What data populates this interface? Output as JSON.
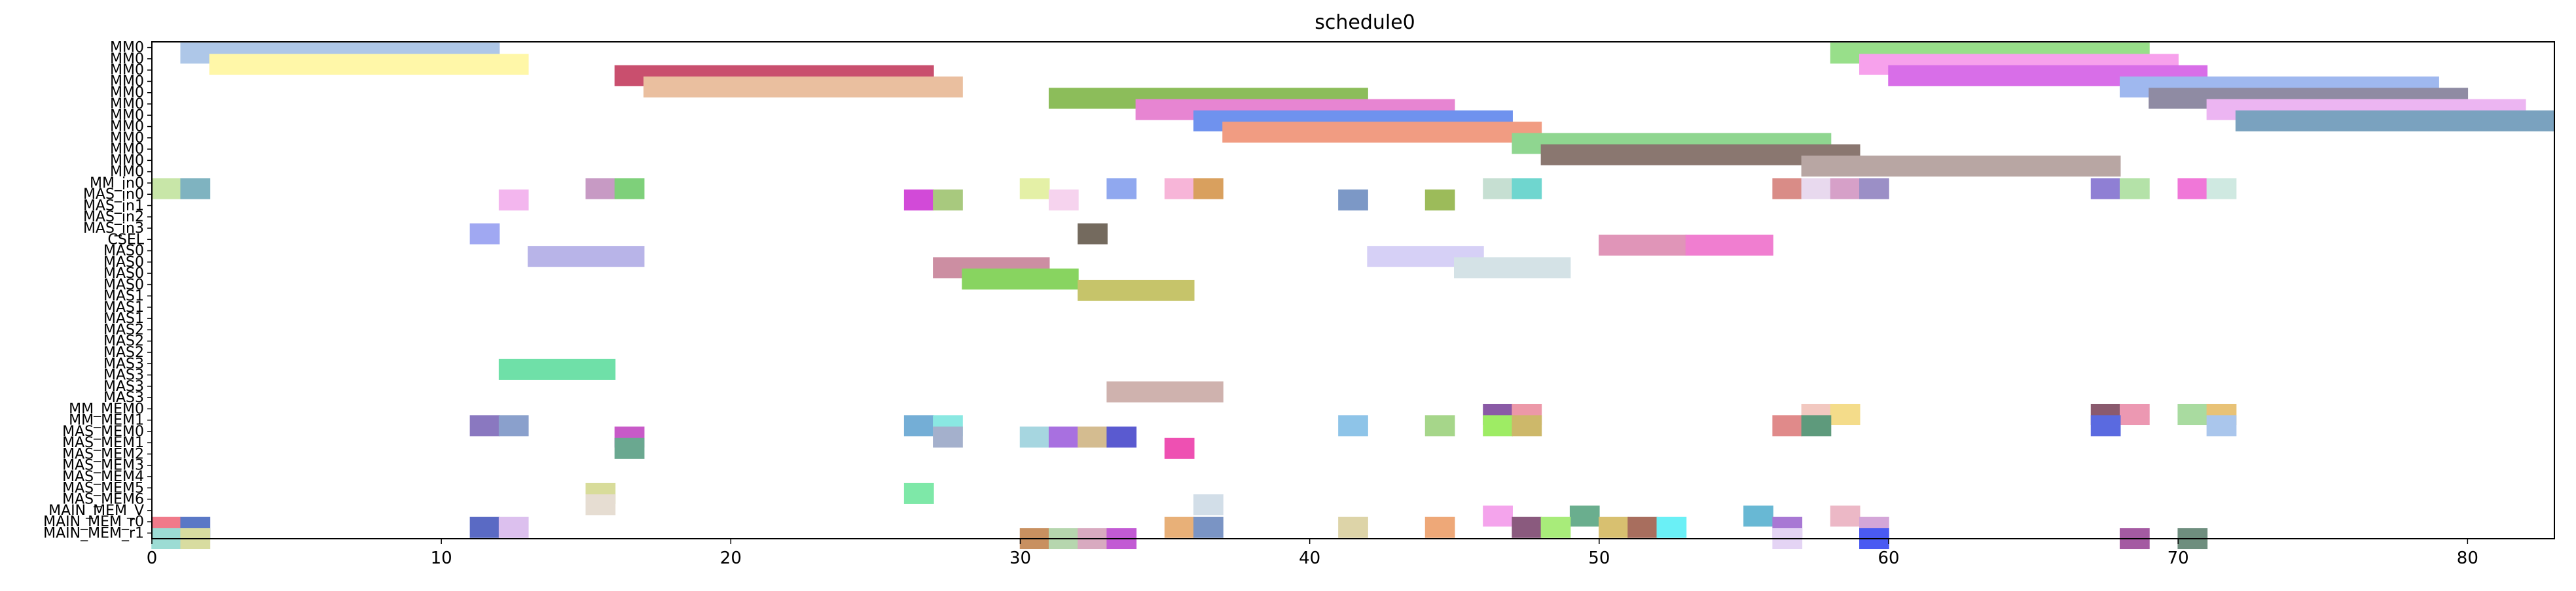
{
  "chart_data": {
    "type": "gantt",
    "title": "schedule0",
    "xlim": [
      0,
      83
    ],
    "x_ticks": [
      0,
      10,
      20,
      30,
      40,
      50,
      60,
      70,
      80
    ],
    "y_labels": [
      "MM0",
      "MM0",
      "MM0",
      "MM0",
      "MM0",
      "MM0",
      "MM0",
      "MM0",
      "MM0",
      "MM0",
      "MM0",
      "MM0",
      "MM_in0",
      "MAS_in0",
      "MAS_in1",
      "MAS_in2",
      "MAS_in3",
      "CSEL",
      "MAS0",
      "MAS0",
      "MAS0",
      "MAS0",
      "MAS1",
      "MAS1",
      "MAS1",
      "MAS2",
      "MAS2",
      "MAS2",
      "MAS3",
      "MAS3",
      "MAS3",
      "MAS3",
      "MM_MEM0",
      "MM_MEM1",
      "MAS_MEM0",
      "MAS_MEM1",
      "MAS_MEM2",
      "MAS_MEM3",
      "MAS_MEM4",
      "MAS_MEM5",
      "MAS_MEM6",
      "MAIN_MEM_V",
      "MAIN_MEM_r0",
      "MAIN_MEM_r1"
    ],
    "bars": [
      {
        "row": 0,
        "start": 1,
        "end": 12,
        "color": "#aec7e8"
      },
      {
        "row": 0,
        "start": 58,
        "end": 69,
        "color": "#98df8a"
      },
      {
        "row": 1,
        "start": 2,
        "end": 13,
        "color": "#fff7a8"
      },
      {
        "row": 1,
        "start": 59,
        "end": 70,
        "color": "#f7a1ec"
      },
      {
        "row": 2,
        "start": 16,
        "end": 27,
        "color": "#c94f6e"
      },
      {
        "row": 2,
        "start": 60,
        "end": 71,
        "color": "#d86ee8"
      },
      {
        "row": 3,
        "start": 17,
        "end": 28,
        "color": "#eabf9f"
      },
      {
        "row": 3,
        "start": 68,
        "end": 79,
        "color": "#9fb8ef"
      },
      {
        "row": 4,
        "start": 31,
        "end": 42,
        "color": "#8cbd5a"
      },
      {
        "row": 4,
        "start": 69,
        "end": 80,
        "color": "#8f8ba3"
      },
      {
        "row": 5,
        "start": 34,
        "end": 45,
        "color": "#e785d2"
      },
      {
        "row": 5,
        "start": 71,
        "end": 82,
        "color": "#ecb5f2"
      },
      {
        "row": 6,
        "start": 36,
        "end": 47,
        "color": "#6f92ee"
      },
      {
        "row": 6,
        "start": 72,
        "end": 83,
        "color": "#7aa2bf"
      },
      {
        "row": 7,
        "start": 37,
        "end": 48,
        "color": "#f19c82"
      },
      {
        "row": 8,
        "start": 47,
        "end": 58,
        "color": "#8fd690"
      },
      {
        "row": 9,
        "start": 48,
        "end": 59,
        "color": "#8a7770"
      },
      {
        "row": 10,
        "start": 57,
        "end": 68,
        "color": "#b8a6a3"
      },
      {
        "row": 12,
        "start": 0,
        "end": 1,
        "color": "#c8e6a8"
      },
      {
        "row": 12,
        "start": 1,
        "end": 2,
        "color": "#7fb3c0"
      },
      {
        "row": 12,
        "start": 15,
        "end": 16,
        "color": "#c79ac4"
      },
      {
        "row": 12,
        "start": 16,
        "end": 17,
        "color": "#7ed07a"
      },
      {
        "row": 12,
        "start": 30,
        "end": 31,
        "color": "#e4f0a6"
      },
      {
        "row": 12,
        "start": 33,
        "end": 34,
        "color": "#90a8ef"
      },
      {
        "row": 12,
        "start": 35,
        "end": 36,
        "color": "#f7b5d8"
      },
      {
        "row": 12,
        "start": 36,
        "end": 37,
        "color": "#d9a05e"
      },
      {
        "row": 12,
        "start": 46,
        "end": 47,
        "color": "#c6dfd2"
      },
      {
        "row": 12,
        "start": 47,
        "end": 48,
        "color": "#6fd6cf"
      },
      {
        "row": 12,
        "start": 56,
        "end": 57,
        "color": "#d98c87"
      },
      {
        "row": 12,
        "start": 57,
        "end": 58,
        "color": "#e8d9ee"
      },
      {
        "row": 12,
        "start": 58,
        "end": 59,
        "color": "#d6a0c8"
      },
      {
        "row": 12,
        "start": 59,
        "end": 60,
        "color": "#9b8fc6"
      },
      {
        "row": 12,
        "start": 67,
        "end": 68,
        "color": "#8f7fd4"
      },
      {
        "row": 12,
        "start": 68,
        "end": 69,
        "color": "#b4e2a8"
      },
      {
        "row": 12,
        "start": 70,
        "end": 71,
        "color": "#f077d8"
      },
      {
        "row": 12,
        "start": 71,
        "end": 72,
        "color": "#cfe9e1"
      },
      {
        "row": 13,
        "start": 12,
        "end": 13,
        "color": "#f3b6ee"
      },
      {
        "row": 13,
        "start": 26,
        "end": 27,
        "color": "#d24ad8"
      },
      {
        "row": 13,
        "start": 27,
        "end": 28,
        "color": "#a8c97e"
      },
      {
        "row": 13,
        "start": 31,
        "end": 32,
        "color": "#f6d3ee"
      },
      {
        "row": 13,
        "start": 41,
        "end": 42,
        "color": "#7c98c6"
      },
      {
        "row": 13,
        "start": 44,
        "end": 45,
        "color": "#9cbb5a"
      },
      {
        "row": 16,
        "start": 11,
        "end": 12,
        "color": "#a0a8f2"
      },
      {
        "row": 16,
        "start": 32,
        "end": 33,
        "color": "#746a5e"
      },
      {
        "row": 17,
        "start": 50,
        "end": 53,
        "color": "#e095b8"
      },
      {
        "row": 17,
        "start": 53,
        "end": 56,
        "color": "#f07ed0"
      },
      {
        "row": 18,
        "start": 13,
        "end": 17,
        "color": "#b8b4e8"
      },
      {
        "row": 18,
        "start": 42,
        "end": 46,
        "color": "#d6d0f6"
      },
      {
        "row": 19,
        "start": 27,
        "end": 31,
        "color": "#cc8ea2"
      },
      {
        "row": 19,
        "start": 45,
        "end": 49,
        "color": "#d4e2e6"
      },
      {
        "row": 20,
        "start": 28,
        "end": 32,
        "color": "#88d460"
      },
      {
        "row": 21,
        "start": 32,
        "end": 36,
        "color": "#c6c46a"
      },
      {
        "row": 28,
        "start": 12,
        "end": 16,
        "color": "#6fe0a8"
      },
      {
        "row": 30,
        "start": 33,
        "end": 37,
        "color": "#cfb2ae"
      },
      {
        "row": 32,
        "start": 46,
        "end": 47,
        "color": "#8a5aa6"
      },
      {
        "row": 32,
        "start": 47,
        "end": 48,
        "color": "#ec98a8"
      },
      {
        "row": 32,
        "start": 57,
        "end": 58,
        "color": "#f2c8c0"
      },
      {
        "row": 32,
        "start": 58,
        "end": 59,
        "color": "#f4dc8a"
      },
      {
        "row": 32,
        "start": 67,
        "end": 68,
        "color": "#8a5a6e"
      },
      {
        "row": 32,
        "start": 68,
        "end": 69,
        "color": "#ec98b2"
      },
      {
        "row": 32,
        "start": 70,
        "end": 71,
        "color": "#a9dba0"
      },
      {
        "row": 32,
        "start": 71,
        "end": 72,
        "color": "#e8c276"
      },
      {
        "row": 33,
        "start": 11,
        "end": 12,
        "color": "#8a78c0"
      },
      {
        "row": 33,
        "start": 12,
        "end": 13,
        "color": "#8aa0cc"
      },
      {
        "row": 33,
        "start": 26,
        "end": 27,
        "color": "#74aed6"
      },
      {
        "row": 33,
        "start": 27,
        "end": 28,
        "color": "#8ae8e2"
      },
      {
        "row": 33,
        "start": 41,
        "end": 42,
        "color": "#8ec4e8"
      },
      {
        "row": 33,
        "start": 44,
        "end": 45,
        "color": "#a6d68a"
      },
      {
        "row": 33,
        "start": 46,
        "end": 47,
        "color": "#9eec64"
      },
      {
        "row": 33,
        "start": 47,
        "end": 48,
        "color": "#cdb86a"
      },
      {
        "row": 33,
        "start": 56,
        "end": 57,
        "color": "#e08a8a"
      },
      {
        "row": 33,
        "start": 57,
        "end": 58,
        "color": "#5e9a7c"
      },
      {
        "row": 33,
        "start": 67,
        "end": 68,
        "color": "#5a6ae0"
      },
      {
        "row": 33,
        "start": 71,
        "end": 72,
        "color": "#aac6ec"
      },
      {
        "row": 34,
        "start": 16,
        "end": 17,
        "color": "#c85ac8"
      },
      {
        "row": 34,
        "start": 27,
        "end": 28,
        "color": "#a4b0cc"
      },
      {
        "row": 34,
        "start": 30,
        "end": 31,
        "color": "#a6d6e0"
      },
      {
        "row": 34,
        "start": 31,
        "end": 32,
        "color": "#a870e0"
      },
      {
        "row": 34,
        "start": 32,
        "end": 33,
        "color": "#d4bc90"
      },
      {
        "row": 34,
        "start": 33,
        "end": 34,
        "color": "#5a5ad0"
      },
      {
        "row": 35,
        "start": 16,
        "end": 17,
        "color": "#6aa890"
      },
      {
        "row": 35,
        "start": 35,
        "end": 36,
        "color": "#ee50b2"
      },
      {
        "row": 39,
        "start": 15,
        "end": 16,
        "color": "#d8dc9a"
      },
      {
        "row": 39,
        "start": 26,
        "end": 27,
        "color": "#7ee8a8"
      },
      {
        "row": 40,
        "start": 15,
        "end": 16,
        "color": "#e6ddd2"
      },
      {
        "row": 40,
        "start": 36,
        "end": 37,
        "color": "#d2dee8"
      },
      {
        "row": 41,
        "start": 46,
        "end": 47,
        "color": "#f4a4ec"
      },
      {
        "row": 41,
        "start": 49,
        "end": 50,
        "color": "#6aae8e"
      },
      {
        "row": 41,
        "start": 55,
        "end": 56,
        "color": "#68b8d4"
      },
      {
        "row": 41,
        "start": 58,
        "end": 59,
        "color": "#ecb8c6"
      },
      {
        "row": 42,
        "start": 0,
        "end": 1,
        "color": "#f07a8a"
      },
      {
        "row": 42,
        "start": 1,
        "end": 2,
        "color": "#5a78c6"
      },
      {
        "row": 42,
        "start": 11,
        "end": 12,
        "color": "#5a6ac4"
      },
      {
        "row": 42,
        "start": 12,
        "end": 13,
        "color": "#dcc0ee"
      },
      {
        "row": 42,
        "start": 35,
        "end": 36,
        "color": "#e8b078"
      },
      {
        "row": 42,
        "start": 36,
        "end": 37,
        "color": "#7a94c4"
      },
      {
        "row": 42,
        "start": 41,
        "end": 42,
        "color": "#ddd4a8"
      },
      {
        "row": 42,
        "start": 44,
        "end": 45,
        "color": "#eea878"
      },
      {
        "row": 42,
        "start": 47,
        "end": 48,
        "color": "#8a5a7e"
      },
      {
        "row": 42,
        "start": 48,
        "end": 49,
        "color": "#a8ec7a"
      },
      {
        "row": 42,
        "start": 50,
        "end": 51,
        "color": "#d8c070"
      },
      {
        "row": 42,
        "start": 51,
        "end": 52,
        "color": "#a86e5e"
      },
      {
        "row": 42,
        "start": 52,
        "end": 53,
        "color": "#6af0f6"
      },
      {
        "row": 42,
        "start": 56,
        "end": 57,
        "color": "#a878d4"
      },
      {
        "row": 42,
        "start": 59,
        "end": 60,
        "color": "#d4a6d8"
      },
      {
        "row": 43,
        "start": 0,
        "end": 1,
        "color": "#9cdcd4"
      },
      {
        "row": 43,
        "start": 1,
        "end": 2,
        "color": "#d8dca0"
      },
      {
        "row": 43,
        "start": 30,
        "end": 31,
        "color": "#c89060"
      },
      {
        "row": 43,
        "start": 31,
        "end": 32,
        "color": "#b6d6ae"
      },
      {
        "row": 43,
        "start": 32,
        "end": 33,
        "color": "#d8aac0"
      },
      {
        "row": 43,
        "start": 33,
        "end": 34,
        "color": "#c25ad4"
      },
      {
        "row": 43,
        "start": 56,
        "end": 57,
        "color": "#e4d4f4"
      },
      {
        "row": 43,
        "start": 59,
        "end": 60,
        "color": "#4a5af2"
      },
      {
        "row": 43,
        "start": 68,
        "end": 69,
        "color": "#a45aa2"
      },
      {
        "row": 43,
        "start": 70,
        "end": 71,
        "color": "#6e8e7e"
      }
    ]
  }
}
